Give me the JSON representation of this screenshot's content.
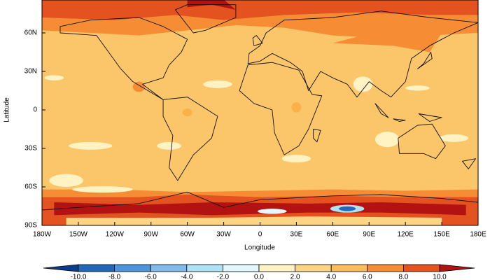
{
  "map": {
    "x_label": "Longitude",
    "y_label": "Latitude",
    "xticks": [
      {
        "value": -180,
        "label": "180W"
      },
      {
        "value": -150,
        "label": "150W"
      },
      {
        "value": -120,
        "label": "120W"
      },
      {
        "value": -90,
        "label": "90W"
      },
      {
        "value": -60,
        "label": "60W"
      },
      {
        "value": -30,
        "label": "30W"
      },
      0,
      {
        "value": 30,
        "label": "30E"
      },
      {
        "value": 60,
        "label": "60E"
      },
      {
        "value": 90,
        "label": "90E"
      },
      {
        "value": 120,
        "label": "120E"
      },
      {
        "value": 150,
        "label": "150E"
      },
      {
        "value": 180,
        "label": "180E"
      }
    ],
    "yticks": [
      {
        "value": -90,
        "label": "90S"
      },
      {
        "value": -60,
        "label": "60S"
      },
      {
        "value": -30,
        "label": "30S"
      },
      0,
      {
        "value": 30,
        "label": "30N"
      },
      {
        "value": 60,
        "label": "60N"
      }
    ],
    "colorbar": {
      "ticks": [
        {
          "value": -10,
          "label": "-10.0"
        },
        {
          "value": -8,
          "label": "-8.0"
        },
        {
          "value": -6,
          "label": "-6.0"
        },
        {
          "value": -4,
          "label": "-4.0"
        },
        {
          "value": -2,
          "label": "-2.0"
        },
        {
          "value": 0,
          "label": "0.0"
        },
        {
          "value": 2,
          "label": "2.0"
        },
        {
          "value": 4,
          "label": "4.0"
        },
        {
          "value": 6,
          "label": "6.0"
        },
        {
          "value": 8,
          "label": "8.0"
        },
        {
          "value": 10,
          "label": "10.0"
        }
      ],
      "colors": [
        "#0b3c8c",
        "#2168b8",
        "#4d94da",
        "#80bbec",
        "#b0e2f6",
        "#e2f8fb",
        "#fff3c4",
        "#fdd484",
        "#fbbc5c",
        "#f68d35",
        "#e4521f",
        "#b31212"
      ]
    }
  }
}
